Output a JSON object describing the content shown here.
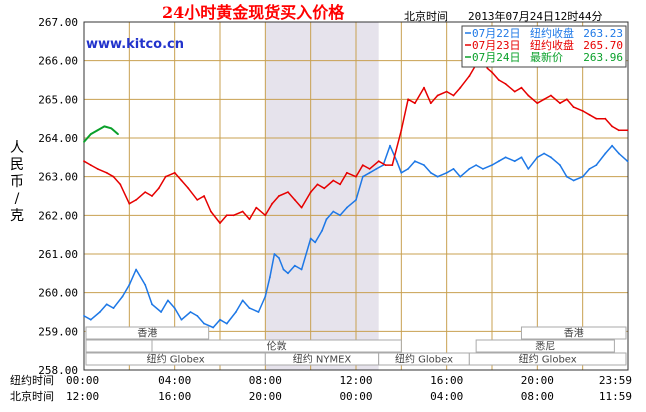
{
  "header": {
    "title": "24小时黄金现货买入价格",
    "time_label": "北京时间",
    "timestamp": "2013年07月24日12时44分",
    "watermark": "www.kitco.cn"
  },
  "axes": {
    "ylabel_chars": [
      "人",
      "民",
      "币",
      "/",
      "克"
    ],
    "ny_label": "纽约时间",
    "bj_label": "北京时间",
    "ny_ticks": [
      "00:00",
      "04:00",
      "08:00",
      "12:00",
      "16:00",
      "20:00",
      "23:59"
    ],
    "bj_ticks": [
      "12:00",
      "16:00",
      "20:00",
      "00:00",
      "04:00",
      "08:00",
      "11:59"
    ]
  },
  "legend": [
    {
      "date": "07月22日",
      "label": "纽约收盘",
      "value": "263.23",
      "color": "#1e78e6"
    },
    {
      "date": "07月23日",
      "label": "纽约收盘",
      "value": "265.70",
      "color": "#e60000"
    },
    {
      "date": "07月24日",
      "label": "最新价",
      "value": "263.96",
      "color": "#0aa02a"
    }
  ],
  "markets": {
    "row1": [
      "香港",
      "香港"
    ],
    "row2": [
      "伦敦",
      "悉尼"
    ],
    "row3": [
      "纽约 Globex",
      "纽约 NYMEX",
      "纽约 Globex",
      "纽约 Globex"
    ]
  },
  "colors": {
    "grid": "#c8a050",
    "frame": "#333333",
    "shade": "#e6e3ec",
    "blue": "#1e78e6",
    "red": "#e60000",
    "green": "#0aa02a",
    "watermark": "#2233cc"
  },
  "chart_data": {
    "type": "line",
    "title": "24小时黄金现货买入价格",
    "ylabel": "人民币/克",
    "xlabel": "",
    "ylim": [
      258.0,
      267.0
    ],
    "xlim_hours": [
      0,
      24
    ],
    "y_ticks": [
      "267.00",
      "266.00",
      "265.00",
      "264.00",
      "263.00",
      "262.00",
      "261.00",
      "260.00",
      "259.00",
      "258.00"
    ],
    "x_unit": "hours since 00:00 New York time",
    "grid": true,
    "legend_position": "top-right",
    "series": [
      {
        "name": "07月22日",
        "x": [
          0.0,
          0.3,
          0.7,
          1.0,
          1.3,
          1.7,
          2.0,
          2.3,
          2.7,
          3.0,
          3.4,
          3.7,
          4.0,
          4.3,
          4.7,
          5.0,
          5.3,
          5.7,
          6.0,
          6.3,
          6.7,
          7.0,
          7.3,
          7.7,
          8.0,
          8.2,
          8.4,
          8.6,
          8.8,
          9.0,
          9.3,
          9.6,
          10.0,
          10.2,
          10.5,
          10.7,
          11.0,
          11.3,
          11.6,
          12.0,
          12.3,
          12.6,
          12.9,
          13.2,
          13.5,
          13.8,
          14.0,
          14.3,
          14.6,
          15.0,
          15.3,
          15.6,
          16.0,
          16.3,
          16.6,
          17.0,
          17.3,
          17.6,
          18.0,
          18.3,
          18.6,
          19.0,
          19.3,
          19.6,
          20.0,
          20.3,
          20.6,
          21.0,
          21.3,
          21.6,
          22.0,
          22.3,
          22.6,
          23.0,
          23.3,
          23.6,
          23.98
        ],
        "values": [
          259.4,
          259.3,
          259.5,
          259.7,
          259.6,
          259.9,
          260.2,
          260.6,
          260.2,
          259.7,
          259.5,
          259.8,
          259.6,
          259.3,
          259.5,
          259.4,
          259.2,
          259.1,
          259.3,
          259.2,
          259.5,
          259.8,
          259.6,
          259.5,
          259.9,
          260.4,
          261.0,
          260.9,
          260.6,
          260.5,
          260.7,
          260.6,
          261.4,
          261.3,
          261.6,
          261.9,
          262.1,
          262.0,
          262.2,
          262.4,
          263.0,
          263.1,
          263.2,
          263.3,
          263.8,
          263.4,
          263.1,
          263.2,
          263.4,
          263.3,
          263.1,
          263.0,
          263.1,
          263.2,
          263.0,
          263.2,
          263.3,
          263.2,
          263.3,
          263.4,
          263.5,
          263.4,
          263.5,
          263.2,
          263.5,
          263.6,
          263.5,
          263.3,
          263.0,
          262.9,
          263.0,
          263.2,
          263.3,
          263.6,
          263.8,
          263.6,
          263.4
        ]
      },
      {
        "name": "07月23日",
        "x": [
          0.0,
          0.3,
          0.6,
          1.0,
          1.3,
          1.6,
          2.0,
          2.3,
          2.7,
          3.0,
          3.3,
          3.6,
          4.0,
          4.3,
          4.6,
          5.0,
          5.3,
          5.6,
          6.0,
          6.3,
          6.6,
          7.0,
          7.3,
          7.6,
          8.0,
          8.3,
          8.6,
          9.0,
          9.3,
          9.6,
          10.0,
          10.3,
          10.6,
          11.0,
          11.3,
          11.6,
          12.0,
          12.3,
          12.6,
          13.0,
          13.3,
          13.6,
          14.0,
          14.3,
          14.6,
          15.0,
          15.3,
          15.6,
          16.0,
          16.3,
          16.6,
          17.0,
          17.3,
          17.5,
          17.8,
          18.0,
          18.3,
          18.6,
          19.0,
          19.3,
          19.6,
          20.0,
          20.3,
          20.6,
          21.0,
          21.3,
          21.6,
          22.0,
          22.3,
          22.6,
          23.0,
          23.3,
          23.6,
          23.98
        ],
        "values": [
          263.4,
          263.3,
          263.2,
          263.1,
          263.0,
          262.8,
          262.3,
          262.4,
          262.6,
          262.5,
          262.7,
          263.0,
          263.1,
          262.9,
          262.7,
          262.4,
          262.5,
          262.1,
          261.8,
          262.0,
          262.0,
          262.1,
          261.9,
          262.2,
          262.0,
          262.3,
          262.5,
          262.6,
          262.4,
          262.2,
          262.6,
          262.8,
          262.7,
          262.9,
          262.8,
          263.1,
          263.0,
          263.3,
          263.2,
          263.4,
          263.3,
          263.3,
          264.2,
          265.0,
          264.9,
          265.3,
          264.9,
          265.1,
          265.2,
          265.1,
          265.3,
          265.6,
          265.9,
          266.1,
          265.8,
          265.7,
          265.5,
          265.4,
          265.2,
          265.3,
          265.1,
          264.9,
          265.0,
          265.1,
          264.9,
          265.0,
          264.8,
          264.7,
          264.6,
          264.5,
          264.5,
          264.3,
          264.2,
          264.2
        ]
      },
      {
        "name": "07月24日",
        "x": [
          0.0,
          0.3,
          0.6,
          0.9,
          1.2,
          1.5
        ],
        "values": [
          263.9,
          264.1,
          264.2,
          264.3,
          264.25,
          264.1
        ]
      }
    ]
  }
}
